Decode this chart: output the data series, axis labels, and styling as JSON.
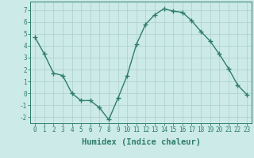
{
  "x": [
    0,
    1,
    2,
    3,
    4,
    5,
    6,
    7,
    8,
    9,
    10,
    11,
    12,
    13,
    14,
    15,
    16,
    17,
    18,
    19,
    20,
    21,
    22,
    23
  ],
  "y": [
    4.7,
    3.3,
    1.7,
    1.5,
    0.0,
    -0.6,
    -0.6,
    -1.2,
    -2.2,
    -0.4,
    1.5,
    4.1,
    5.8,
    6.6,
    7.1,
    6.9,
    6.8,
    6.1,
    5.2,
    4.4,
    3.3,
    2.1,
    0.7,
    -0.1
  ],
  "line_color": "#2e7d6e",
  "marker": "+",
  "markersize": 4,
  "linewidth": 1.0,
  "background_color": "#cceae7",
  "grid_color": "#b0d4d0",
  "xlabel": "Humidex (Indice chaleur)",
  "xlim": [
    -0.5,
    23.5
  ],
  "ylim": [
    -2.5,
    7.7
  ],
  "yticks": [
    -2,
    -1,
    0,
    1,
    2,
    3,
    4,
    5,
    6,
    7
  ],
  "xticks": [
    0,
    1,
    2,
    3,
    4,
    5,
    6,
    7,
    8,
    9,
    10,
    11,
    12,
    13,
    14,
    15,
    16,
    17,
    18,
    19,
    20,
    21,
    22,
    23
  ],
  "tick_fontsize": 5.5,
  "xlabel_fontsize": 7.5
}
